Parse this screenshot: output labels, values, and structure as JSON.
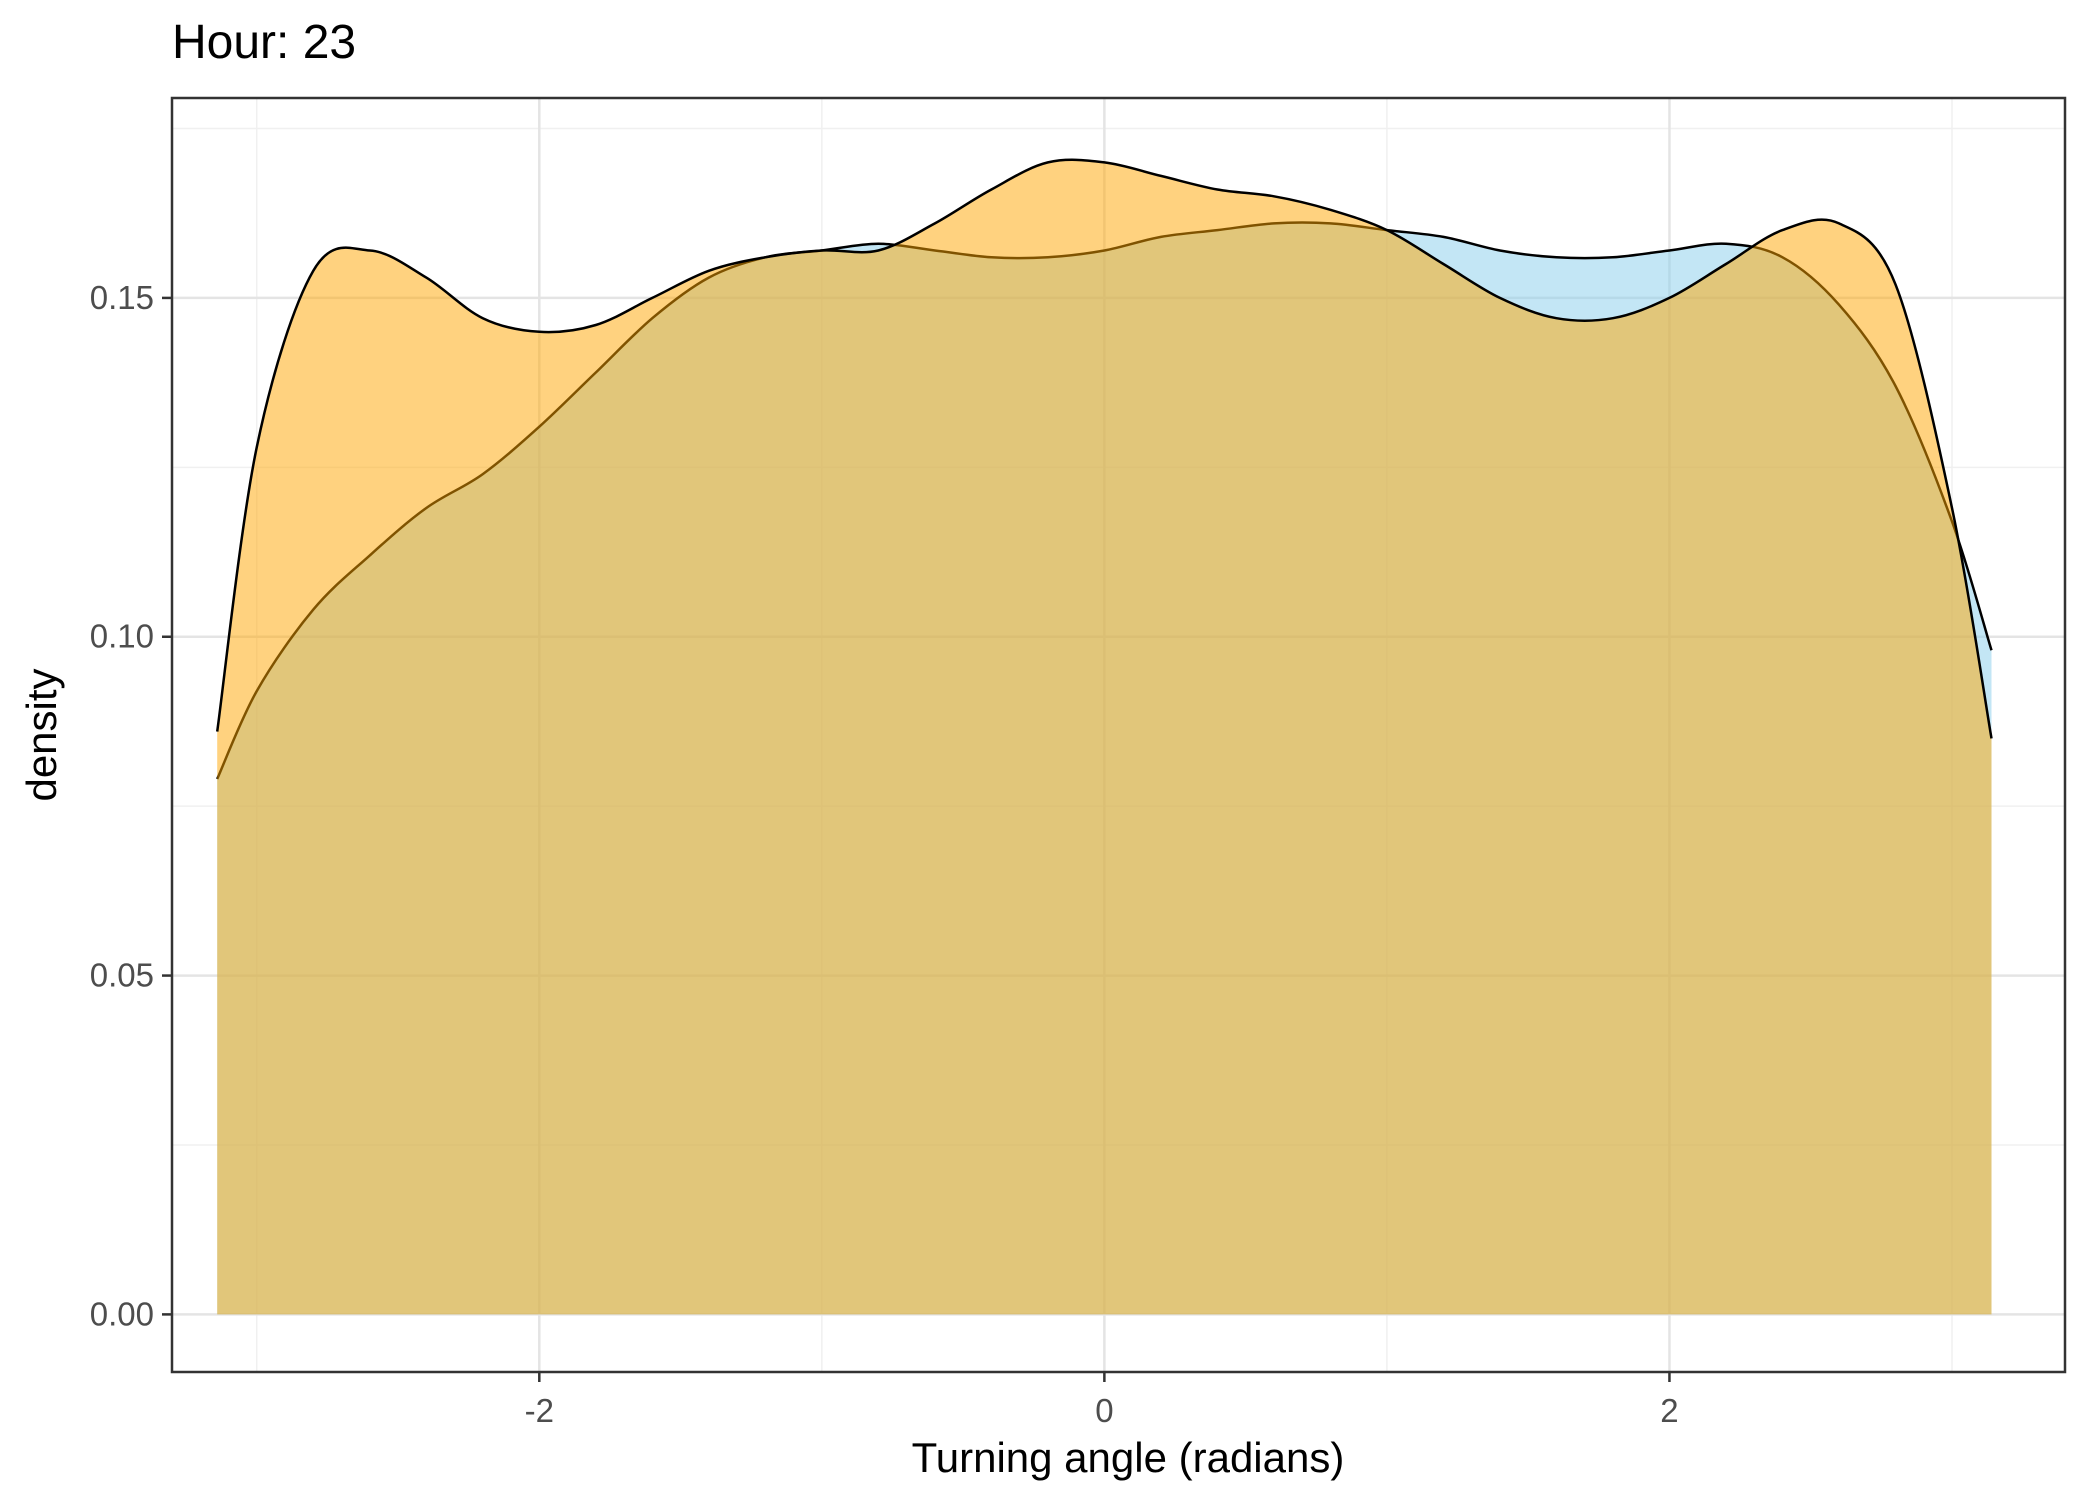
{
  "chart_data": {
    "type": "area",
    "title": "Hour: 23",
    "xlabel": "Turning angle (radians)",
    "ylabel": "density",
    "xlim": [
      -3.3,
      3.4
    ],
    "ylim": [
      -0.0085,
      0.1795
    ],
    "x_ticks": [
      -2,
      0,
      2
    ],
    "x_tick_labels": [
      "-2",
      "0",
      "2"
    ],
    "y_ticks": [
      0.0,
      0.05,
      0.1,
      0.15
    ],
    "y_tick_labels": [
      "0.00",
      "0.05",
      "0.10",
      "0.15"
    ],
    "x_minor_ticks": [
      -3,
      -1,
      1,
      3
    ],
    "y_minor_ticks": [
      0.025,
      0.075,
      0.125,
      0.175
    ],
    "grid": true,
    "legend": "none",
    "series": [
      {
        "fill": "#87CEEB",
        "opacity": 0.5,
        "x": [
          -3.14,
          -3.0,
          -2.8,
          -2.6,
          -2.4,
          -2.2,
          -2.0,
          -1.8,
          -1.6,
          -1.4,
          -1.2,
          -1.0,
          -0.8,
          -0.6,
          -0.4,
          -0.2,
          0.0,
          0.2,
          0.4,
          0.6,
          0.8,
          1.0,
          1.2,
          1.4,
          1.6,
          1.8,
          2.0,
          2.2,
          2.4,
          2.6,
          2.8,
          3.0,
          3.14
        ],
        "y": [
          0.079,
          0.092,
          0.104,
          0.112,
          0.119,
          0.124,
          0.131,
          0.139,
          0.147,
          0.153,
          0.156,
          0.157,
          0.158,
          0.157,
          0.156,
          0.156,
          0.157,
          0.159,
          0.16,
          0.161,
          0.161,
          0.16,
          0.159,
          0.157,
          0.156,
          0.156,
          0.157,
          0.158,
          0.156,
          0.149,
          0.137,
          0.117,
          0.098
        ]
      },
      {
        "fill": "#FFA500",
        "opacity": 0.5,
        "x": [
          -3.14,
          -3.0,
          -2.8,
          -2.6,
          -2.4,
          -2.2,
          -2.0,
          -1.8,
          -1.6,
          -1.4,
          -1.2,
          -1.0,
          -0.8,
          -0.6,
          -0.4,
          -0.2,
          0.0,
          0.2,
          0.4,
          0.6,
          0.8,
          1.0,
          1.2,
          1.4,
          1.6,
          1.8,
          2.0,
          2.2,
          2.4,
          2.6,
          2.8,
          3.0,
          3.14
        ],
        "y": [
          0.086,
          0.128,
          0.154,
          0.157,
          0.153,
          0.147,
          0.145,
          0.146,
          0.15,
          0.154,
          0.156,
          0.157,
          0.157,
          0.161,
          0.166,
          0.17,
          0.17,
          0.168,
          0.166,
          0.165,
          0.163,
          0.16,
          0.155,
          0.15,
          0.147,
          0.147,
          0.15,
          0.155,
          0.16,
          0.161,
          0.152,
          0.119,
          0.085
        ]
      }
    ]
  }
}
